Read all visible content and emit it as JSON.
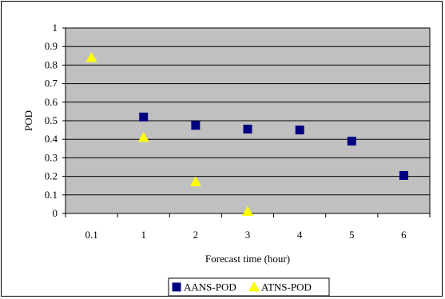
{
  "chart_data": {
    "type": "scatter",
    "title": "",
    "xlabel": "Forecast time (hour)",
    "ylabel": "POD",
    "categories": [
      "0.1",
      "1",
      "2",
      "3",
      "4",
      "5",
      "6"
    ],
    "ylim": [
      0,
      1
    ],
    "yticks": [
      "0",
      "0.1",
      "0.2",
      "0.3",
      "0.4",
      "0.5",
      "0.6",
      "0.7",
      "0.8",
      "0.9",
      "1"
    ],
    "grid": true,
    "legend_position": "bottom",
    "series": [
      {
        "name": "AANS-POD",
        "marker": "square",
        "color": "#000080",
        "values": [
          null,
          0.52,
          0.475,
          0.455,
          0.45,
          0.39,
          0.205
        ]
      },
      {
        "name": "ATNS-POD",
        "marker": "triangle",
        "color": "#ffff00",
        "values": [
          0.84,
          0.41,
          0.17,
          0.01,
          null,
          null,
          null
        ]
      }
    ]
  },
  "colors": {
    "plot_background": "#c0c0c0",
    "gridline": "#000000",
    "border": "#000000"
  }
}
